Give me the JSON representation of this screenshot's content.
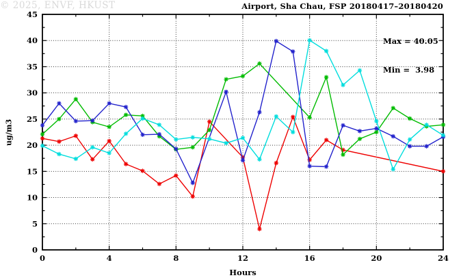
{
  "title": "Airport, Sha Chau, FSP 20180417–20180420",
  "stats": {
    "max_line": "Max = 40.05",
    "min_line": "Min =  3.98",
    "max": 40.05,
    "min": 3.98
  },
  "watermark": "© 2025, ENVF, HKUST",
  "chart_data": {
    "type": "line",
    "title": "Airport, Sha Chau, FSP 20180417–20180420",
    "xlabel": "Hours",
    "ylabel": "ug/m3",
    "xlim": [
      0,
      24
    ],
    "ylim": [
      0,
      45
    ],
    "x_major_ticks": [
      0,
      4,
      8,
      12,
      16,
      20,
      24
    ],
    "x_minor_ticks": [
      2,
      6,
      10,
      14,
      18,
      22
    ],
    "y_major_ticks": [
      0,
      5,
      10,
      15,
      20,
      25,
      30,
      35,
      40,
      45
    ],
    "y_minor_ticks": [
      2.5,
      7.5,
      12.5,
      17.5,
      22.5,
      27.5,
      32.5,
      37.5,
      42.5
    ],
    "grid_x_lines": [
      4,
      8,
      12,
      16,
      20
    ],
    "grid_y_lines": [
      5,
      10,
      15,
      20,
      25,
      30,
      35,
      40
    ],
    "grid_color": "#3a3a3a",
    "marker": "asterisk",
    "x": [
      0,
      1,
      2,
      3,
      4,
      5,
      6,
      7,
      8,
      9,
      10,
      11,
      12,
      13,
      14,
      15,
      16,
      17,
      18,
      19,
      20,
      21,
      22,
      23,
      24
    ],
    "series": [
      {
        "name": "red",
        "color": "#ee0000",
        "values": [
          21.3,
          20.7,
          21.8,
          17.3,
          20.8,
          16.4,
          15.1,
          12.6,
          14.2,
          10.2,
          24.5,
          null,
          17.7,
          3.98,
          16.6,
          25.4,
          17.2,
          21.0,
          19.1,
          null,
          null,
          null,
          null,
          null,
          15.0
        ]
      },
      {
        "name": "green",
        "color": "#00bb00",
        "values": [
          22.1,
          25.0,
          28.8,
          24.4,
          23.5,
          25.8,
          25.6,
          21.7,
          19.2,
          19.6,
          22.9,
          32.6,
          33.2,
          35.6,
          null,
          null,
          25.3,
          33.0,
          18.2,
          21.2,
          22.5,
          27.1,
          25.1,
          23.6,
          23.9
        ]
      },
      {
        "name": "blue",
        "color": "#2222cc",
        "values": [
          23.8,
          28.0,
          24.6,
          24.7,
          28.0,
          27.3,
          22.0,
          22.1,
          19.3,
          12.8,
          null,
          30.2,
          17.1,
          26.3,
          39.9,
          37.9,
          16.0,
          15.9,
          23.8,
          22.7,
          23.2,
          21.7,
          19.8,
          19.8,
          21.6
        ]
      },
      {
        "name": "cyan",
        "color": "#00dddd",
        "values": [
          19.9,
          18.3,
          17.4,
          19.6,
          18.5,
          22.2,
          25.1,
          23.9,
          21.1,
          21.5,
          21.2,
          20.4,
          21.4,
          17.3,
          25.5,
          22.5,
          40.05,
          38.0,
          31.5,
          34.3,
          24.6,
          15.4,
          21.1,
          23.9,
          21.9
        ]
      }
    ]
  }
}
